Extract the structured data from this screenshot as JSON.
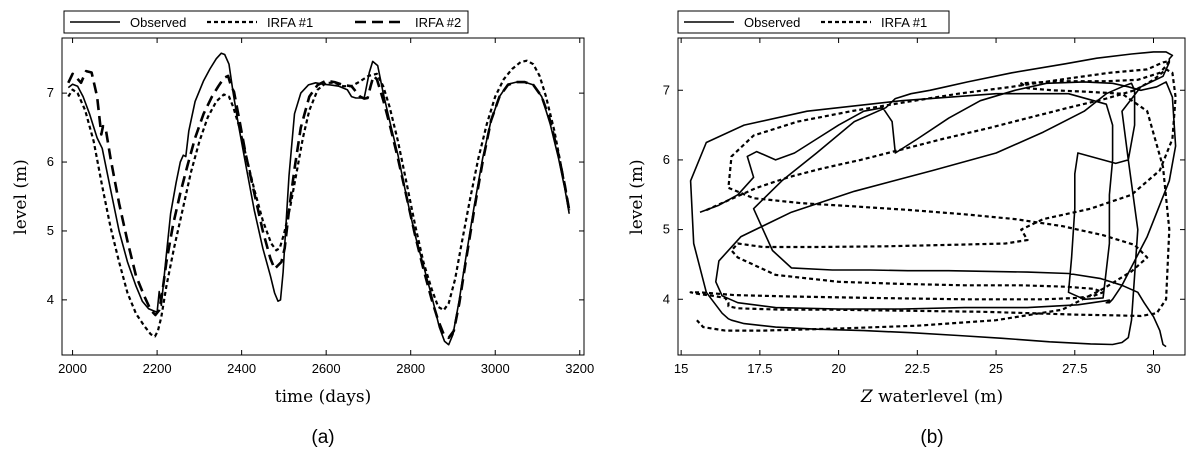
{
  "chart_data": [
    {
      "type": "line",
      "caption": "(a)",
      "xlabel": "time (days)",
      "ylabel": "level (m)",
      "xlim": [
        1975,
        3210
      ],
      "ylim": [
        3.2,
        7.8
      ],
      "xticks": [
        2000,
        2200,
        2400,
        2600,
        2800,
        3000,
        3200
      ],
      "yticks": [
        4,
        5,
        6,
        7
      ],
      "legend_position": "top",
      "series": [
        {
          "name": "Observed",
          "style": "solid",
          "x": [
            1990,
            2000,
            2012,
            2025,
            2040,
            2058,
            2070,
            2090,
            2110,
            2130,
            2150,
            2165,
            2180,
            2192,
            2200,
            2205,
            2210,
            2220,
            2232,
            2245,
            2255,
            2262,
            2268,
            2275,
            2290,
            2310,
            2325,
            2340,
            2352,
            2360,
            2370,
            2380,
            2392,
            2410,
            2430,
            2450,
            2468,
            2478,
            2486,
            2492,
            2498,
            2505,
            2512,
            2525,
            2540,
            2558,
            2575,
            2592,
            2610,
            2630,
            2650,
            2660,
            2670,
            2690,
            2702,
            2710,
            2722,
            2735,
            2750,
            2770,
            2790,
            2810,
            2830,
            2850,
            2868,
            2880,
            2890,
            2900,
            2915,
            2930,
            2950,
            2970,
            2990,
            3010,
            3030,
            3050,
            3070,
            3090,
            3110,
            3130,
            3150,
            3165,
            3175
          ],
          "y": [
            7.08,
            7.13,
            7.1,
            6.95,
            6.7,
            6.35,
            6.2,
            5.6,
            5.0,
            4.55,
            4.2,
            3.98,
            3.87,
            3.84,
            3.82,
            4.12,
            3.92,
            4.55,
            5.25,
            5.7,
            6.0,
            6.1,
            6.08,
            6.45,
            6.88,
            7.18,
            7.35,
            7.5,
            7.58,
            7.56,
            7.42,
            7.0,
            6.55,
            5.95,
            5.3,
            4.75,
            4.35,
            4.1,
            3.98,
            4.0,
            4.4,
            5.1,
            5.8,
            6.7,
            7.0,
            7.12,
            7.15,
            7.13,
            7.12,
            7.1,
            7.05,
            6.95,
            6.93,
            6.93,
            7.3,
            7.46,
            7.4,
            7.0,
            6.6,
            6.1,
            5.5,
            4.95,
            4.5,
            4.05,
            3.6,
            3.4,
            3.35,
            3.5,
            4.0,
            4.6,
            5.35,
            6.05,
            6.6,
            6.95,
            7.13,
            7.16,
            7.16,
            7.12,
            6.95,
            6.55,
            6.05,
            5.6,
            5.25
          ]
        },
        {
          "name": "IRFA #1",
          "style": "dotted",
          "x": [
            1990,
            2000,
            2012,
            2030,
            2050,
            2070,
            2090,
            2110,
            2130,
            2150,
            2170,
            2185,
            2195,
            2202,
            2210,
            2222,
            2240,
            2260,
            2280,
            2300,
            2320,
            2340,
            2358,
            2370,
            2380,
            2395,
            2410,
            2430,
            2450,
            2470,
            2482,
            2490,
            2500,
            2515,
            2530,
            2545,
            2560,
            2580,
            2600,
            2620,
            2640,
            2660,
            2680,
            2700,
            2720,
            2735,
            2750,
            2770,
            2790,
            2810,
            2830,
            2850,
            2865,
            2878,
            2890,
            2905,
            2920,
            2940,
            2960,
            2980,
            3000,
            3020,
            3040,
            3060,
            3075,
            3090,
            3105,
            3120,
            3140,
            3160,
            3175
          ],
          "y": [
            6.95,
            7.05,
            7.0,
            6.75,
            6.3,
            5.65,
            5.05,
            4.55,
            4.1,
            3.8,
            3.62,
            3.5,
            3.47,
            3.55,
            3.75,
            4.2,
            4.75,
            5.3,
            5.85,
            6.3,
            6.65,
            6.88,
            6.98,
            6.95,
            6.8,
            6.5,
            6.1,
            5.6,
            5.15,
            4.82,
            4.72,
            4.75,
            4.95,
            5.35,
            5.85,
            6.35,
            6.75,
            7.05,
            7.15,
            7.15,
            7.1,
            7.1,
            7.17,
            7.25,
            7.28,
            7.1,
            6.8,
            6.3,
            5.7,
            5.1,
            4.55,
            4.15,
            3.9,
            3.85,
            3.95,
            4.3,
            4.8,
            5.45,
            6.05,
            6.55,
            6.95,
            7.2,
            7.35,
            7.45,
            7.47,
            7.42,
            7.25,
            6.95,
            6.45,
            5.8,
            5.3
          ]
        },
        {
          "name": "IRFA #2",
          "style": "dashed",
          "x": [
            1990,
            2000,
            2010,
            2020,
            2032,
            2045,
            2058,
            2068,
            2072,
            2078,
            2090,
            2110,
            2130,
            2150,
            2170,
            2185,
            2196,
            2205,
            2212,
            2222,
            2238,
            2255,
            2272,
            2290,
            2310,
            2330,
            2345,
            2358,
            2368,
            2375,
            2382,
            2395,
            2410,
            2430,
            2450,
            2468,
            2478,
            2486,
            2494,
            2502,
            2512,
            2525,
            2540,
            2560,
            2580,
            2600,
            2620,
            2640,
            2660,
            2680,
            2690,
            2698,
            2705,
            2712,
            2720,
            2735,
            2750,
            2770,
            2790,
            2810,
            2830,
            2850,
            2865,
            2878,
            2890,
            2902,
            2915,
            2930,
            2950,
            2970,
            2990,
            3010,
            3030,
            3050,
            3070,
            3090,
            3110,
            3130,
            3150,
            3165,
            3175
          ],
          "y": [
            7.15,
            7.28,
            7.22,
            7.15,
            7.32,
            7.3,
            6.95,
            6.4,
            6.52,
            6.5,
            6.05,
            5.4,
            4.85,
            4.35,
            4.05,
            3.85,
            3.78,
            3.85,
            4.1,
            4.55,
            5.1,
            5.55,
            5.95,
            6.35,
            6.7,
            6.95,
            7.1,
            7.22,
            7.25,
            7.1,
            7.02,
            6.6,
            6.1,
            5.55,
            5.0,
            4.6,
            4.45,
            4.5,
            4.55,
            4.75,
            5.3,
            5.9,
            6.5,
            6.95,
            7.12,
            7.18,
            7.16,
            7.12,
            7.1,
            6.95,
            6.92,
            6.93,
            7.1,
            7.25,
            7.2,
            6.9,
            6.55,
            6.05,
            5.5,
            4.95,
            4.45,
            4.0,
            3.7,
            3.5,
            3.45,
            3.55,
            3.95,
            4.55,
            5.3,
            6.0,
            6.6,
            6.95,
            7.12,
            7.16,
            7.16,
            7.12,
            6.95,
            6.6,
            6.1,
            5.65,
            5.3
          ]
        }
      ]
    },
    {
      "type": "line",
      "caption": "(b)",
      "xlabel_italic": "Z",
      "xlabel": "waterlevel (m)",
      "ylabel": "level (m)",
      "xlim": [
        14.9,
        31.0
      ],
      "ylim": [
        3.2,
        7.75
      ],
      "xticks": [
        15,
        17.5,
        20,
        22.5,
        25,
        27.5,
        30
      ],
      "xtick_labels": [
        "15",
        "17.5",
        "20",
        "22.5",
        "25",
        "27.5",
        "30"
      ],
      "yticks": [
        4,
        5,
        6,
        7
      ],
      "legend_position": "top-left",
      "series": [
        {
          "name": "Observed",
          "style": "solid",
          "x": [
            15.6,
            16.2,
            16.8,
            17.3,
            17.1,
            17.4,
            18.0,
            18.6,
            19.3,
            20.0,
            20.8,
            21.4,
            21.7,
            21.8,
            22.5,
            23.5,
            24.5,
            25.6,
            26.6,
            27.8,
            28.7,
            29.2,
            29.6,
            30.1,
            30.4,
            30.6,
            30.7,
            30.5,
            29.8,
            29.0,
            28.7,
            28.6,
            28.5,
            28.6,
            28.6,
            28.5,
            27.6,
            26.0,
            24.0,
            22.0,
            20.0,
            18.0,
            16.8,
            16.3,
            16.1,
            16.2,
            16.9,
            18.5,
            20.5,
            23.0,
            25.0,
            26.5,
            27.8,
            28.5,
            29.0,
            29.3,
            29.4,
            29.4,
            29.2,
            28.8,
            27.6,
            27.5,
            27.5,
            27.4,
            27.3,
            27.8,
            28.4,
            28.6,
            28.6,
            28.7,
            28.7,
            28.5,
            27.3,
            25.0,
            22.0,
            19.0,
            17.0,
            15.8,
            15.3,
            15.4,
            15.8,
            16.3,
            16.5,
            16.6,
            17.0,
            18.0,
            19.3,
            20.8,
            22.3,
            23.8,
            25.2,
            26.7,
            28.0,
            28.7,
            29.0,
            29.2,
            29.3,
            29.5,
            29.2,
            29.0,
            29.6,
            30.3,
            30.4,
            30.5,
            30.5,
            30.6,
            30.4,
            30.0,
            29.3,
            28.2,
            27.2,
            25.5,
            24.1,
            23.4,
            22.9,
            22.3,
            21.8,
            21.5,
            20.5,
            19.3,
            18.2,
            17.3,
            17.6,
            17.9,
            18.5,
            19.8,
            21.0,
            22.2,
            23.5,
            24.8,
            26.0,
            27.3,
            28.3,
            29.0,
            29.5,
            29.7,
            30.0,
            30.2,
            30.3,
            30.4
          ],
          "y": [
            5.25,
            5.35,
            5.5,
            5.75,
            6.05,
            6.12,
            6.0,
            6.1,
            6.3,
            6.5,
            6.7,
            6.75,
            6.55,
            6.1,
            6.3,
            6.6,
            6.85,
            7.0,
            7.1,
            7.12,
            7.1,
            7.05,
            7.0,
            7.05,
            7.12,
            6.9,
            6.2,
            5.7,
            4.9,
            4.2,
            4.0,
            3.95,
            3.95,
            3.97,
            3.99,
            3.98,
            3.92,
            3.88,
            3.88,
            3.86,
            3.86,
            3.88,
            3.95,
            4.05,
            4.25,
            4.55,
            4.9,
            5.25,
            5.55,
            5.85,
            6.1,
            6.4,
            6.7,
            6.95,
            7.05,
            7.1,
            7.0,
            6.5,
            6.0,
            5.95,
            6.1,
            5.8,
            5.3,
            4.6,
            4.1,
            4.0,
            4.02,
            4.8,
            5.5,
            6.0,
            6.5,
            6.8,
            6.95,
            6.95,
            6.85,
            6.7,
            6.5,
            6.25,
            5.7,
            4.8,
            4.1,
            3.8,
            3.72,
            3.7,
            3.65,
            3.6,
            3.57,
            3.55,
            3.52,
            3.48,
            3.44,
            3.39,
            3.36,
            3.35,
            3.38,
            3.45,
            3.7,
            5.0,
            6.0,
            6.7,
            7.05,
            7.2,
            7.3,
            7.4,
            7.45,
            7.5,
            7.55,
            7.55,
            7.52,
            7.46,
            7.38,
            7.25,
            7.12,
            7.05,
            7.0,
            6.95,
            6.88,
            6.75,
            6.55,
            6.1,
            5.7,
            5.3,
            5.0,
            4.7,
            4.45,
            4.42,
            4.42,
            4.41,
            4.41,
            4.4,
            4.39,
            4.37,
            4.3,
            4.2,
            4.1,
            3.95,
            3.75,
            3.55,
            3.35,
            3.32
          ]
        },
        {
          "name": "IRFA #1",
          "style": "dotted",
          "x": [
            15.8,
            16.5,
            17.4,
            18.4,
            19.5,
            20.7,
            22.0,
            23.3,
            24.7,
            26.0,
            27.3,
            28.5,
            29.4,
            30.0,
            30.4,
            30.6,
            30.7,
            30.6,
            30.2,
            29.3,
            28.0,
            26.5,
            25.8,
            26.0,
            25.3,
            23.5,
            21.5,
            19.3,
            17.6,
            16.8,
            16.6,
            16.8,
            18.0,
            20.0,
            22.0,
            24.0,
            25.8,
            27.2,
            28.1,
            28.4,
            28.1,
            27.6,
            26.5,
            24.0,
            21.0,
            18.5,
            16.7,
            15.6,
            15.3,
            15.5,
            16.0,
            16.4,
            16.5,
            16.5,
            16.8,
            18.2,
            19.8,
            21.4,
            23.0,
            24.6,
            26.1,
            27.5,
            28.7,
            29.6,
            30.1,
            30.4,
            30.5,
            30.3,
            29.8,
            29.0,
            27.8,
            26.8,
            26.0,
            25.8,
            27.0,
            28.5,
            29.5,
            30.2,
            30.4,
            30.5,
            30.3,
            29.8,
            28.6,
            27.0,
            25.5,
            23.8,
            22.0,
            20.4,
            18.7,
            17.3,
            16.6,
            16.5,
            17.3,
            18.8,
            20.6,
            22.3,
            24.0,
            25.6,
            27.1,
            28.4,
            29.4,
            29.8,
            29.3,
            28.4,
            27.1,
            25.0,
            22.5,
            20.0,
            17.6,
            16.4,
            15.7,
            15.5
          ],
          "y": [
            5.28,
            5.42,
            5.6,
            5.75,
            5.88,
            6.0,
            6.15,
            6.3,
            6.45,
            6.6,
            6.75,
            6.88,
            7.0,
            7.15,
            7.3,
            7.25,
            6.9,
            6.3,
            5.85,
            5.5,
            5.3,
            5.15,
            5.0,
            4.85,
            4.8,
            4.78,
            4.76,
            4.75,
            4.75,
            4.8,
            4.7,
            4.6,
            4.35,
            4.25,
            4.22,
            4.2,
            4.2,
            4.18,
            4.15,
            4.1,
            4.05,
            4.02,
            4.0,
            4.0,
            4.02,
            4.04,
            4.06,
            4.1,
            4.1,
            4.08,
            4.05,
            4.02,
            3.95,
            3.9,
            3.87,
            3.85,
            3.85,
            3.84,
            3.83,
            3.82,
            3.8,
            3.78,
            3.77,
            3.76,
            3.8,
            4.0,
            5.0,
            5.9,
            6.7,
            6.95,
            6.98,
            7.0,
            7.03,
            7.1,
            7.13,
            7.13,
            7.15,
            7.25,
            7.35,
            7.42,
            7.4,
            7.3,
            7.25,
            7.15,
            7.05,
            6.95,
            6.82,
            6.7,
            6.55,
            6.35,
            6.05,
            5.6,
            5.45,
            5.38,
            5.33,
            5.28,
            5.22,
            5.15,
            5.05,
            4.92,
            4.78,
            4.6,
            4.4,
            4.15,
            3.85,
            3.7,
            3.62,
            3.58,
            3.55,
            3.55,
            3.6,
            3.7
          ]
        }
      ]
    }
  ]
}
